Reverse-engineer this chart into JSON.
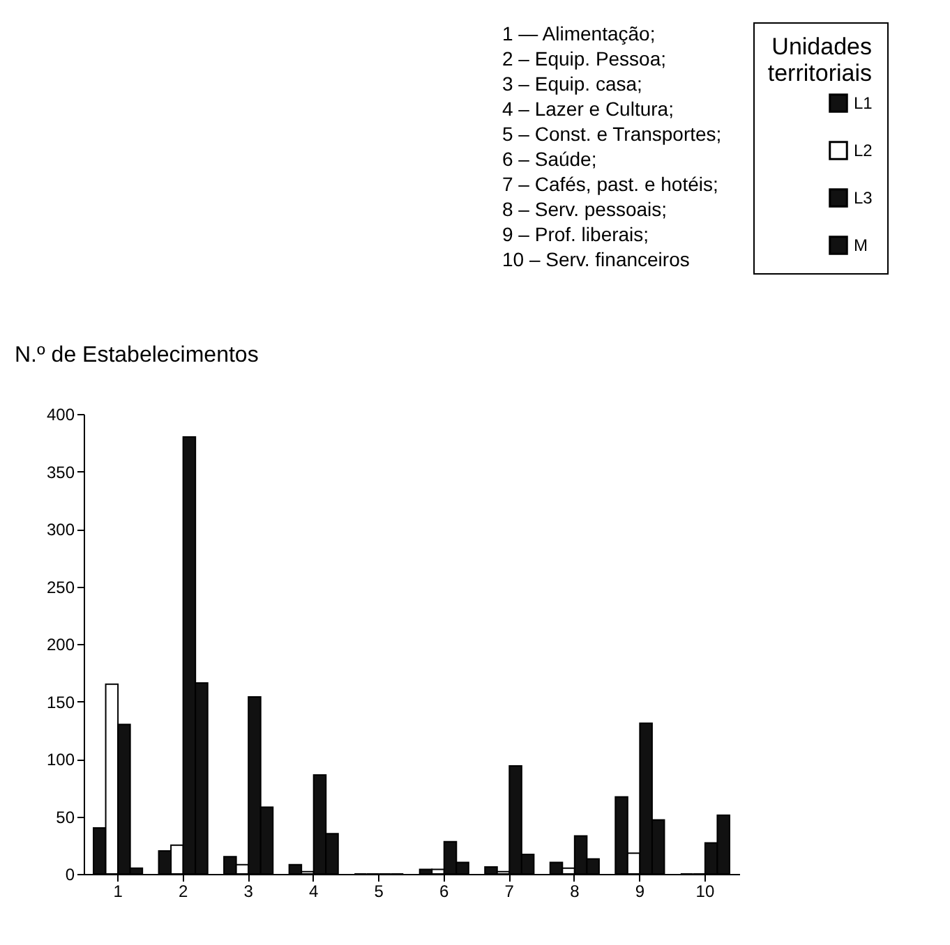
{
  "chart_data": {
    "type": "bar",
    "ylabel": "N.º de Estabelecimentos",
    "legend_title": "Unidades territoriais",
    "legend": "right",
    "grid": false,
    "annotations": [
      "1 — Alimentação;",
      "2 – Equip. Pessoa;",
      "3 – Equip. casa;",
      "4 – Lazer e Cultura;",
      "5 – Const. e Transportes;",
      "6 – Saúde;",
      "7 – Cafés, past. e hotéis;",
      "8 – Serv. pessoais;",
      "9 – Prof. liberais;",
      "10 – Serv. financeiros"
    ],
    "categories": [
      "1",
      "2",
      "3",
      "4",
      "5",
      "6",
      "7",
      "8",
      "9",
      "10"
    ],
    "ylim": [
      0,
      400
    ],
    "yticks": [
      0,
      50,
      100,
      150,
      200,
      250,
      300,
      350,
      400
    ],
    "series": [
      {
        "name": "L1",
        "color": "#111111",
        "values": [
          40,
          20,
          15,
          8,
          0,
          4,
          6,
          10,
          67,
          0
        ]
      },
      {
        "name": "L2",
        "color": "#ffffff",
        "values": [
          165,
          25,
          8,
          2,
          0,
          4,
          2,
          5,
          18,
          0
        ]
      },
      {
        "name": "L3",
        "color": "#111111",
        "values": [
          130,
          380,
          154,
          86,
          0,
          28,
          94,
          33,
          131,
          27
        ]
      },
      {
        "name": "M",
        "color": "#111111",
        "values": [
          5,
          166,
          58,
          35,
          0,
          10,
          17,
          13,
          47,
          51
        ]
      }
    ]
  }
}
